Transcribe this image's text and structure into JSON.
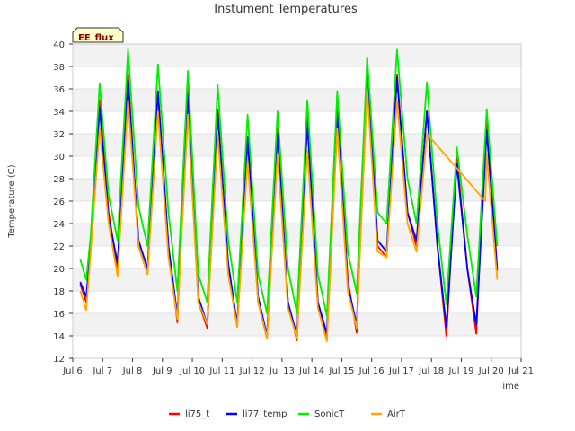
{
  "chart_data": {
    "type": "line",
    "title": "Instument Temperatures",
    "xlabel": "Time",
    "ylabel": "Temperature (C)",
    "badge": "EE_flux",
    "xlim": [
      6.0,
      21.0
    ],
    "ylim": [
      12,
      40
    ],
    "x_ticks": [
      6,
      7,
      8,
      9,
      10,
      11,
      12,
      13,
      14,
      15,
      16,
      17,
      18,
      19,
      20,
      21
    ],
    "x_tick_labels": [
      "Jul 6",
      "Jul 7",
      "Jul 8",
      "Jul 9",
      "Jul 10",
      "Jul 11",
      "Jul 12",
      "Jul 13",
      "Jul 14",
      "Jul 15",
      "Jul 16",
      "Jul 17",
      "Jul 18",
      "Jul 19",
      "Jul 20",
      "Jul 21"
    ],
    "y_ticks": [
      12,
      14,
      16,
      18,
      20,
      22,
      24,
      26,
      28,
      30,
      32,
      34,
      36,
      38,
      40
    ],
    "grid": "horizontal bands",
    "legend_position": "bottom",
    "series": [
      {
        "name": "li75_t",
        "color": "#ff0000",
        "x": [
          6.25,
          6.45,
          6.6,
          6.9,
          7.2,
          7.5,
          7.85,
          8.2,
          8.5,
          8.85,
          9.2,
          9.5,
          9.85,
          10.2,
          10.5,
          10.85,
          11.2,
          11.5,
          11.85,
          12.2,
          12.5,
          12.85,
          13.2,
          13.5,
          13.85,
          14.2,
          14.5,
          14.85,
          15.2,
          15.5,
          15.85,
          16.2,
          16.5,
          16.85,
          17.2,
          17.5,
          17.85,
          18.2,
          18.5,
          18.85,
          19.2,
          19.5,
          19.85,
          20.2
        ],
        "y": [
          18.6,
          17.0,
          22.0,
          35.0,
          25.0,
          20.0,
          37.3,
          22.0,
          19.5,
          35.8,
          22.0,
          15.2,
          36.5,
          17.0,
          14.7,
          34.2,
          20.0,
          14.8,
          31.5,
          17.0,
          13.8,
          32.5,
          17.0,
          13.6,
          33.5,
          17.0,
          13.7,
          35.0,
          19.0,
          14.3,
          38.7,
          22.0,
          21.0,
          37.3,
          25.0,
          22.0,
          34.0,
          22.0,
          14.0,
          30.0,
          20.0,
          14.2,
          33.5,
          20.0
        ]
      },
      {
        "name": "li77_temp",
        "color": "#0000ff",
        "x": [
          6.25,
          6.45,
          6.6,
          6.9,
          7.2,
          7.5,
          7.85,
          8.2,
          8.5,
          8.85,
          9.2,
          9.5,
          9.85,
          10.2,
          10.5,
          10.85,
          11.2,
          11.5,
          11.85,
          12.2,
          12.5,
          12.85,
          13.2,
          13.5,
          13.85,
          14.2,
          14.5,
          14.85,
          15.2,
          15.5,
          15.85,
          16.2,
          16.5,
          16.85,
          17.2,
          17.5,
          17.85,
          18.2,
          18.5,
          18.85,
          19.2,
          19.5,
          19.85,
          20.2
        ],
        "y": [
          18.8,
          17.5,
          22.0,
          34.3,
          24.5,
          20.5,
          36.8,
          22.5,
          20.0,
          35.8,
          22.0,
          15.8,
          35.5,
          17.5,
          15.0,
          33.8,
          20.5,
          15.0,
          31.7,
          17.5,
          14.0,
          32.0,
          17.0,
          14.0,
          33.0,
          17.0,
          14.2,
          34.0,
          18.5,
          15.0,
          38.0,
          22.5,
          21.5,
          37.0,
          25.0,
          22.5,
          34.0,
          22.0,
          14.8,
          29.3,
          20.0,
          15.0,
          32.3,
          19.8
        ]
      },
      {
        "name": "SonicT",
        "color": "#00ee00",
        "x": [
          6.25,
          6.45,
          6.6,
          6.9,
          7.2,
          7.5,
          7.85,
          8.2,
          8.5,
          8.85,
          9.2,
          9.5,
          9.85,
          10.2,
          10.5,
          10.85,
          11.2,
          11.5,
          11.85,
          12.2,
          12.5,
          12.85,
          13.2,
          13.5,
          13.85,
          14.2,
          14.5,
          14.85,
          15.2,
          15.5,
          15.85,
          16.2,
          16.5,
          16.85,
          17.2,
          17.5,
          17.85,
          18.2,
          18.5,
          18.85,
          19.2,
          19.5,
          19.85,
          20.2
        ],
        "y": [
          20.8,
          19.0,
          23.0,
          36.5,
          26.5,
          22.5,
          39.5,
          25.5,
          22.0,
          38.2,
          25.0,
          18.0,
          37.6,
          19.5,
          17.0,
          36.4,
          22.5,
          17.0,
          33.7,
          19.5,
          16.0,
          34.0,
          20.0,
          16.0,
          35.0,
          19.5,
          15.8,
          35.8,
          21.5,
          17.8,
          38.8,
          25.0,
          24.0,
          39.5,
          28.0,
          24.0,
          36.6,
          24.0,
          16.8,
          30.8,
          23.0,
          17.5,
          34.2,
          22.0
        ]
      },
      {
        "name": "AirT",
        "color": "#ffa500",
        "x": [
          6.25,
          6.45,
          6.6,
          6.9,
          7.2,
          7.5,
          7.85,
          8.2,
          8.5,
          8.85,
          9.2,
          9.5,
          9.85,
          10.2,
          10.5,
          10.85,
          11.2,
          11.5,
          11.85,
          12.2,
          12.5,
          12.85,
          13.2,
          13.5,
          13.85,
          14.2,
          14.5,
          14.85,
          15.2,
          15.5,
          15.85,
          16.2,
          16.5,
          16.85,
          17.2,
          17.5,
          17.85,
          19.8,
          19.85,
          20.2
        ],
        "y": [
          18.0,
          16.3,
          21.5,
          32.5,
          24.0,
          19.3,
          35.0,
          22.0,
          19.5,
          34.0,
          21.0,
          15.5,
          33.7,
          17.0,
          15.0,
          32.0,
          19.5,
          14.8,
          29.6,
          17.0,
          13.8,
          30.2,
          16.5,
          13.8,
          30.5,
          16.5,
          13.5,
          32.5,
          18.0,
          14.7,
          36.0,
          21.5,
          21.0,
          35.0,
          24.0,
          21.5,
          32.0,
          26.0,
          30.2,
          19.0
        ]
      }
    ]
  }
}
